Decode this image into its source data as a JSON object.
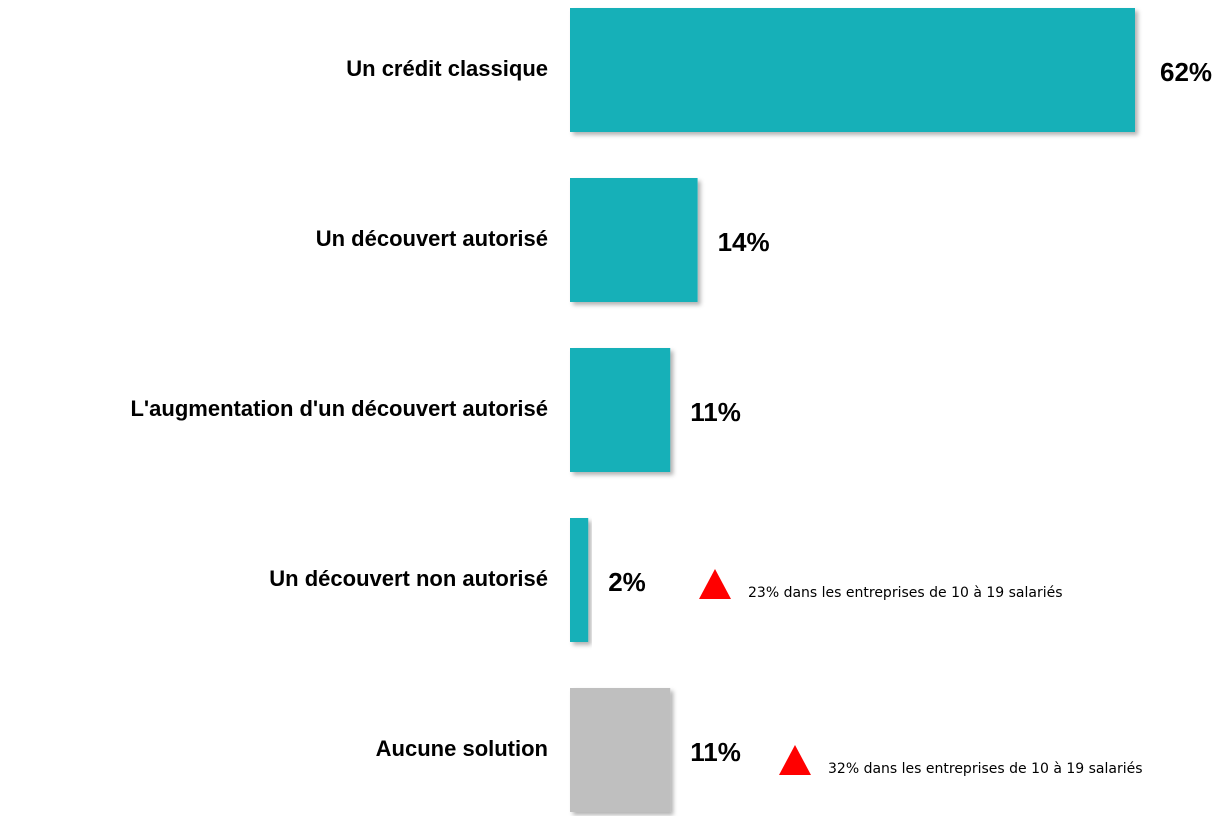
{
  "chart_data": {
    "type": "hbar",
    "categories": [
      "Un crédit classique",
      "Un découvert autorisé",
      "L'augmentation d'un découvert autorisé",
      "Un découvert non autorisé",
      "Aucune solution"
    ],
    "values": [
      62,
      14,
      11,
      2,
      11
    ],
    "value_labels": [
      "62%",
      "14%",
      "11%",
      "2%",
      "11%"
    ],
    "colors": [
      "#14b0b8",
      "#14b0b8",
      "#14b0b8",
      "#14b0b8",
      "#bfbfbf"
    ],
    "annotations": [
      "23% dans les entreprises de 10 à 19 salariés",
      "32% dans les entreprises de 10 à 19 salariés"
    ],
    "annotation_color": "#ff0000"
  }
}
